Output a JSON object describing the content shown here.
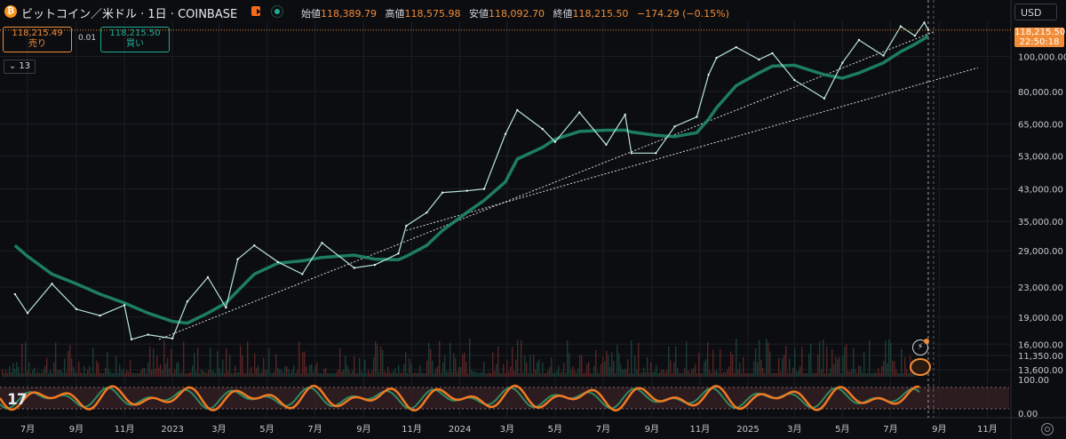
{
  "header": {
    "title": "ビットコイン／米ドル · 1日 · COINBASE",
    "ohlc": [
      {
        "key": "始値",
        "value": "118,389.79"
      },
      {
        "key": "高値",
        "value": "118,575.98"
      },
      {
        "key": "安値",
        "value": "118,092.70"
      },
      {
        "key": "終値",
        "value": "118,215.50"
      }
    ],
    "change": "−174.29 (−0.15%)"
  },
  "trade": {
    "sell_price": "118,215.49",
    "sell_label": "売り",
    "spread": "0.01",
    "buy_price": "118,215.50",
    "buy_label": "買い"
  },
  "indicator_count": "13",
  "currency": "USD",
  "last_price": {
    "price": "118,215.50",
    "countdown": "22:50:18"
  },
  "icons": [
    "bitcoin-icon",
    "flag-icon",
    "status-dot-icon",
    "chevron-down-icon",
    "alert-icon",
    "event-icon",
    "tradingview-logo-icon",
    "settings-icon"
  ],
  "colors": {
    "accent": "#f28c38",
    "up": "#22ab94",
    "background": "#0c0d10",
    "ma": "#1f8a6a"
  },
  "oscillator_labels": [
    "100.00",
    "0.00"
  ],
  "chart_data": {
    "type": "line",
    "scale": "log",
    "ylim": [
      13000,
      125000
    ],
    "x": [
      "2022-06-15",
      "2022-07-01",
      "2022-08-01",
      "2022-09-01",
      "2022-10-01",
      "2022-11-01",
      "2022-11-10",
      "2022-12-01",
      "2023-01-01",
      "2023-01-20",
      "2023-02-15",
      "2023-03-10",
      "2023-03-25",
      "2023-04-15",
      "2023-05-15",
      "2023-06-15",
      "2023-07-10",
      "2023-08-20",
      "2023-09-15",
      "2023-10-15",
      "2023-10-25",
      "2023-11-20",
      "2023-12-10",
      "2024-01-10",
      "2024-02-01",
      "2024-02-28",
      "2024-03-14",
      "2024-04-15",
      "2024-05-01",
      "2024-06-01",
      "2024-07-05",
      "2024-07-29",
      "2024-08-06",
      "2024-09-06",
      "2024-09-30",
      "2024-10-28",
      "2024-11-12",
      "2024-11-22",
      "2024-12-17",
      "2025-01-15",
      "2025-02-01",
      "2025-03-01",
      "2025-04-08",
      "2025-05-01",
      "2025-05-22",
      "2025-06-22",
      "2025-07-14",
      "2025-08-01",
      "2025-08-13",
      "2025-08-18"
    ],
    "series": [
      {
        "values": [
          22000,
          19500,
          23500,
          20000,
          19200,
          20500,
          16500,
          17000,
          16600,
          21000,
          24500,
          20200,
          27500,
          30000,
          27000,
          25000,
          30500,
          26000,
          26500,
          28500,
          34000,
          37000,
          42000,
          42500,
          43000,
          61000,
          71000,
          63000,
          58000,
          70000,
          57000,
          69000,
          54000,
          54000,
          64000,
          68000,
          89000,
          99000,
          106000,
          98000,
          102000,
          86000,
          76500,
          96000,
          111000,
          100500,
          121000,
          114000,
          124000,
          118215.5
        ]
      },
      {
        "values": [
          30000,
          28000,
          25000,
          23500,
          22000,
          20800,
          20400,
          19500,
          18500,
          18300,
          19500,
          20800,
          22500,
          25000,
          26800,
          27200,
          27800,
          28200,
          27500,
          27400,
          28000,
          30000,
          33000,
          37000,
          40000,
          45000,
          52000,
          56000,
          59000,
          62000,
          62500,
          62500,
          61800,
          60500,
          60000,
          61500,
          67000,
          72000,
          83000,
          90000,
          94000,
          94500,
          89000,
          87000,
          90000,
          96000,
          103000,
          108000,
          112000,
          114000
        ]
      }
    ],
    "support_lines": [
      {
        "from": [
          "2022-12-15",
          16500
        ],
        "to": [
          "2025-08-25",
          117000
        ]
      },
      {
        "from": [
          "2023-10-25",
          33000
        ],
        "to": [
          "2025-10-20",
          93000
        ]
      }
    ],
    "y_ticks": [
      "100,000.00",
      "80,000.00",
      "65,000.00",
      "53,000.00",
      "43,000.00",
      "35,000.00",
      "29,000.00",
      "23,000.00",
      "19,000.00",
      "16,000.00",
      "13,600.00",
      "11,350.00"
    ],
    "x_ticks": [
      "7月",
      "9月",
      "11月",
      "2023",
      "3月",
      "5月",
      "7月",
      "9月",
      "11月",
      "2024",
      "3月",
      "5月",
      "7月",
      "9月",
      "11月",
      "2025",
      "3月",
      "5月",
      "7月",
      "9月",
      "11月"
    ]
  }
}
